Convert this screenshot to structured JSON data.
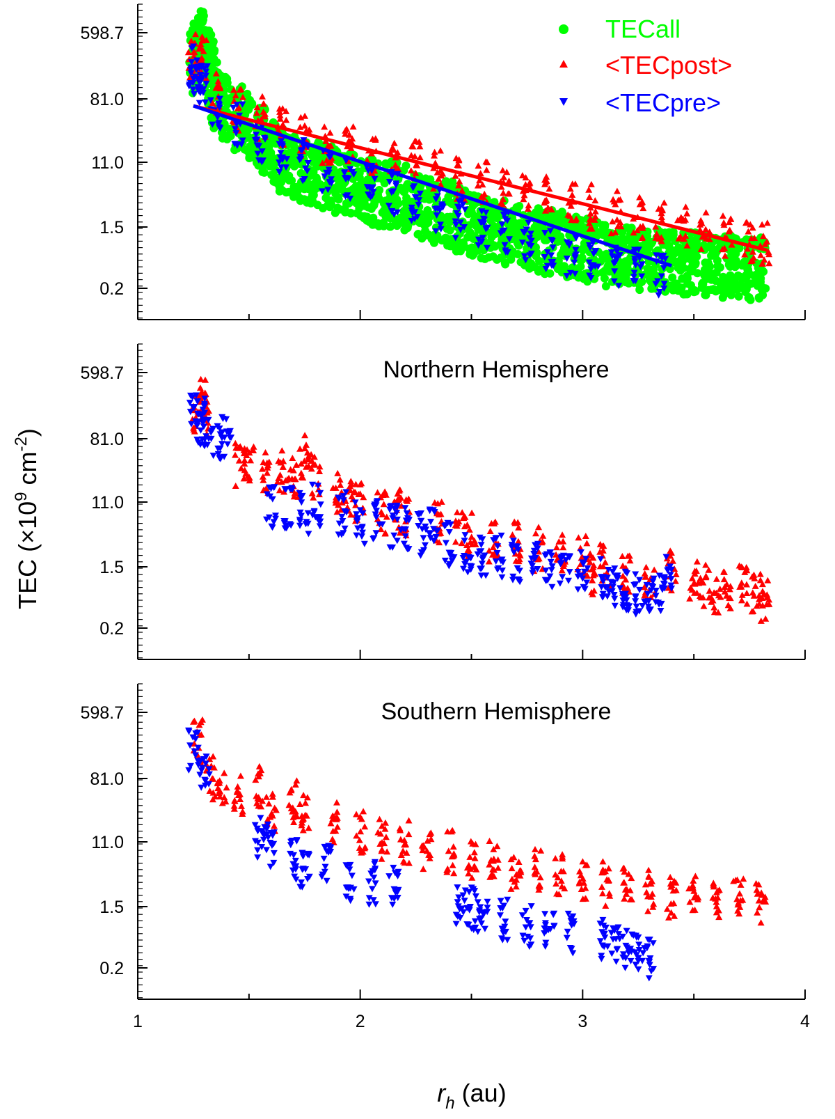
{
  "chart_data": {
    "type": "scatter",
    "shared_x": {
      "label_symbol": "r",
      "label_subscript": "h",
      "label_unit": "(au)",
      "range": [
        1,
        4
      ],
      "ticks": [
        1,
        2,
        3,
        4
      ],
      "tick_labels": [
        "1",
        "2",
        "3",
        "4"
      ]
    },
    "shared_y": {
      "label_main": "TEC (×10",
      "label_exp1": "9",
      "label_mid": " cm",
      "label_exp2": "-2",
      "label_end": ")",
      "scale": "log",
      "range": [
        0.07,
        2000
      ],
      "ticks": [
        0.2,
        1.5,
        11.0,
        81.0,
        598.7
      ],
      "tick_labels": [
        "0.2",
        "1.5",
        "11.0",
        "81.0",
        "598.7"
      ]
    },
    "legend": [
      {
        "name": "TECall",
        "marker": "circle",
        "color": "#00ff00"
      },
      {
        "name": "<TECpost>",
        "marker": "triangle-up",
        "color": "#ff0000"
      },
      {
        "name": "<TECpre>",
        "marker": "triangle-down",
        "color": "#0000ff"
      }
    ],
    "panels": [
      {
        "id": "all",
        "title": "",
        "series": [
          {
            "name": "TECall",
            "color": "#00ff00",
            "marker": "circle",
            "points": [
              [
                1.25,
                260
              ],
              [
                1.27,
                320
              ],
              [
                1.29,
                420
              ],
              [
                1.31,
                230
              ],
              [
                1.33,
                180
              ],
              [
                1.35,
                90
              ],
              [
                1.4,
                60
              ],
              [
                1.45,
                45
              ],
              [
                1.5,
                35
              ],
              [
                1.55,
                22
              ],
              [
                1.6,
                15
              ],
              [
                1.65,
                12
              ],
              [
                1.7,
                10
              ],
              [
                1.75,
                9
              ],
              [
                1.8,
                8
              ],
              [
                1.85,
                7
              ],
              [
                1.9,
                6.5
              ],
              [
                1.95,
                5.5
              ],
              [
                2.0,
                5
              ],
              [
                2.05,
                4.5
              ],
              [
                2.1,
                4.2
              ],
              [
                2.15,
                4
              ],
              [
                2.2,
                3.8
              ],
              [
                2.25,
                3.2
              ],
              [
                2.3,
                2.8
              ],
              [
                2.35,
                2.5
              ],
              [
                2.4,
                2.2
              ],
              [
                2.45,
                1.9
              ],
              [
                2.5,
                1.6
              ],
              [
                2.55,
                1.4
              ],
              [
                2.6,
                1.3
              ],
              [
                2.65,
                1.2
              ],
              [
                2.7,
                1.1
              ],
              [
                2.75,
                1.0
              ],
              [
                2.8,
                0.95
              ],
              [
                2.85,
                0.9
              ],
              [
                2.9,
                0.85
              ],
              [
                2.95,
                0.8
              ],
              [
                3.0,
                0.7
              ],
              [
                3.05,
                0.65
              ],
              [
                3.1,
                0.6
              ],
              [
                3.15,
                0.58
              ],
              [
                3.2,
                0.55
              ],
              [
                3.25,
                0.52
              ],
              [
                3.3,
                0.5
              ],
              [
                3.35,
                0.5
              ],
              [
                3.4,
                0.48
              ],
              [
                3.45,
                0.46
              ],
              [
                3.5,
                0.45
              ],
              [
                3.55,
                0.44
              ],
              [
                3.6,
                0.42
              ],
              [
                3.65,
                0.4
              ],
              [
                3.7,
                0.4
              ],
              [
                3.75,
                0.38
              ],
              [
                3.8,
                0.38
              ]
            ]
          },
          {
            "name": "<TECpost>",
            "color": "#ff0000",
            "marker": "triangle-up",
            "points": [
              [
                1.25,
                260
              ],
              [
                1.27,
                320
              ],
              [
                1.29,
                250
              ],
              [
                1.35,
                90
              ],
              [
                1.45,
                55
              ],
              [
                1.55,
                45
              ],
              [
                1.65,
                30
              ],
              [
                1.75,
                25
              ],
              [
                1.85,
                20
              ],
              [
                1.95,
                17
              ],
              [
                2.05,
                15
              ],
              [
                2.15,
                12
              ],
              [
                2.25,
                11
              ],
              [
                2.35,
                8.5
              ],
              [
                2.45,
                6.5
              ],
              [
                2.55,
                6
              ],
              [
                2.65,
                5
              ],
              [
                2.75,
                4.5
              ],
              [
                2.85,
                3.8
              ],
              [
                2.95,
                3.2
              ],
              [
                3.05,
                2.8
              ],
              [
                3.15,
                2.3
              ],
              [
                3.25,
                2
              ],
              [
                3.35,
                1.7
              ],
              [
                3.45,
                1.5
              ],
              [
                3.55,
                1.3
              ],
              [
                3.65,
                1.1
              ],
              [
                3.75,
                0.95
              ],
              [
                3.82,
                0.85
              ]
            ]
          },
          {
            "name": "<TECpre>",
            "color": "#0000ff",
            "marker": "triangle-down",
            "points": [
              [
                1.25,
                200
              ],
              [
                1.27,
                160
              ],
              [
                1.29,
                120
              ],
              [
                1.35,
                60
              ],
              [
                1.45,
                35
              ],
              [
                1.55,
                22
              ],
              [
                1.65,
                16
              ],
              [
                1.75,
                12
              ],
              [
                1.85,
                9
              ],
              [
                1.95,
                7
              ],
              [
                2.05,
                5.5
              ],
              [
                2.15,
                4.2
              ],
              [
                2.25,
                3.2
              ],
              [
                2.35,
                2.5
              ],
              [
                2.45,
                1.9
              ],
              [
                2.55,
                1.5
              ],
              [
                2.65,
                1.2
              ],
              [
                2.75,
                0.95
              ],
              [
                2.85,
                0.75
              ],
              [
                2.95,
                0.6
              ],
              [
                3.05,
                0.5
              ],
              [
                3.15,
                0.42
              ],
              [
                3.25,
                0.36
              ],
              [
                3.35,
                0.31
              ]
            ]
          }
        ],
        "fits": [
          {
            "name": "<TECpost> fit",
            "color": "#ff0000",
            "x": [
              1.25,
              3.83
            ],
            "y": [
              65,
              0.7
            ]
          },
          {
            "name": "<TECpre> fit",
            "color": "#0000ff",
            "x": [
              1.25,
              3.4
            ],
            "y": [
              65,
              0.42
            ]
          }
        ]
      },
      {
        "id": "north",
        "title": "Northern Hemisphere",
        "series": [
          {
            "name": "<TECpost>",
            "color": "#ff0000",
            "marker": "triangle-up",
            "points": [
              [
                1.26,
                200
              ],
              [
                1.29,
                260
              ],
              [
                1.3,
                170
              ],
              [
                1.46,
                35
              ],
              [
                1.5,
                40
              ],
              [
                1.57,
                28
              ],
              [
                1.65,
                30
              ],
              [
                1.7,
                22
              ],
              [
                1.75,
                45
              ],
              [
                1.8,
                25
              ],
              [
                1.9,
                15
              ],
              [
                1.95,
                12
              ],
              [
                2.0,
                10
              ],
              [
                2.1,
                8
              ],
              [
                2.17,
                9
              ],
              [
                2.2,
                7
              ],
              [
                2.35,
                6
              ],
              [
                2.45,
                4.5
              ],
              [
                2.5,
                4
              ],
              [
                2.6,
                3.5
              ],
              [
                2.7,
                3
              ],
              [
                2.8,
                2.6
              ],
              [
                2.9,
                2.3
              ],
              [
                3.0,
                2
              ],
              [
                3.05,
                1.2
              ],
              [
                3.1,
                1.5
              ],
              [
                3.2,
                1.1
              ],
              [
                3.3,
                1.0
              ],
              [
                3.4,
                1.3
              ],
              [
                3.5,
                0.9
              ],
              [
                3.55,
                0.8
              ],
              [
                3.6,
                0.6
              ],
              [
                3.65,
                0.7
              ],
              [
                3.72,
                0.8
              ],
              [
                3.78,
                0.6
              ],
              [
                3.82,
                0.5
              ]
            ]
          },
          {
            "name": "<TECpre>",
            "color": "#0000ff",
            "marker": "triangle-down",
            "points": [
              [
                1.25,
                200
              ],
              [
                1.28,
                140
              ],
              [
                1.3,
                100
              ],
              [
                1.35,
                80
              ],
              [
                1.4,
                90
              ],
              [
                1.6,
                10
              ],
              [
                1.68,
                9
              ],
              [
                1.75,
                8
              ],
              [
                1.8,
                10
              ],
              [
                1.92,
                8
              ],
              [
                2.0,
                6
              ],
              [
                2.08,
                6
              ],
              [
                2.15,
                5
              ],
              [
                2.2,
                5
              ],
              [
                2.28,
                4
              ],
              [
                2.33,
                4.5
              ],
              [
                2.4,
                3
              ],
              [
                2.48,
                2.5
              ],
              [
                2.55,
                2
              ],
              [
                2.62,
                2
              ],
              [
                2.7,
                1.8
              ],
              [
                2.78,
                1.6
              ],
              [
                2.85,
                1.4
              ],
              [
                2.92,
                1.5
              ],
              [
                3.0,
                1.2
              ],
              [
                3.1,
                1.0
              ],
              [
                3.15,
                0.8
              ],
              [
                3.2,
                0.7
              ],
              [
                3.25,
                0.6
              ],
              [
                3.3,
                0.65
              ],
              [
                3.35,
                0.7
              ],
              [
                3.38,
                1.2
              ]
            ]
          }
        ]
      },
      {
        "id": "south",
        "title": "Southern Hemisphere",
        "series": [
          {
            "name": "<TECpost>",
            "color": "#ff0000",
            "marker": "triangle-up",
            "points": [
              [
                1.27,
                250
              ],
              [
                1.33,
                80
              ],
              [
                1.38,
                70
              ],
              [
                1.45,
                50
              ],
              [
                1.55,
                60
              ],
              [
                1.6,
                30
              ],
              [
                1.7,
                40
              ],
              [
                1.75,
                30
              ],
              [
                1.88,
                20
              ],
              [
                2.0,
                15
              ],
              [
                2.1,
                12
              ],
              [
                2.2,
                11
              ],
              [
                2.3,
                9
              ],
              [
                2.4,
                8
              ],
              [
                2.5,
                7
              ],
              [
                2.6,
                6
              ],
              [
                2.7,
                5
              ],
              [
                2.8,
                4.5
              ],
              [
                2.9,
                4
              ],
              [
                3.0,
                3.5
              ],
              [
                3.1,
                3
              ],
              [
                3.2,
                2.8
              ],
              [
                3.3,
                2.5
              ],
              [
                3.4,
                2
              ],
              [
                3.5,
                2.2
              ],
              [
                3.6,
                2
              ],
              [
                3.7,
                1.8
              ],
              [
                3.8,
                1.6
              ]
            ]
          },
          {
            "name": "<TECpre>",
            "color": "#0000ff",
            "marker": "triangle-down",
            "points": [
              [
                1.25,
                200
              ],
              [
                1.3,
                100
              ],
              [
                1.55,
                12
              ],
              [
                1.6,
                10
              ],
              [
                1.7,
                6
              ],
              [
                1.75,
                5
              ],
              [
                1.85,
                5
              ],
              [
                1.95,
                3.5
              ],
              [
                2.05,
                3
              ],
              [
                2.15,
                3
              ],
              [
                2.45,
                1.6
              ],
              [
                2.5,
                1.4
              ],
              [
                2.55,
                1.3
              ],
              [
                2.65,
                1.0
              ],
              [
                2.75,
                0.8
              ],
              [
                2.85,
                0.7
              ],
              [
                2.95,
                0.6
              ],
              [
                3.1,
                0.5
              ],
              [
                3.15,
                0.4
              ],
              [
                3.2,
                0.35
              ],
              [
                3.25,
                0.3
              ],
              [
                3.3,
                0.28
              ]
            ]
          }
        ]
      }
    ]
  }
}
